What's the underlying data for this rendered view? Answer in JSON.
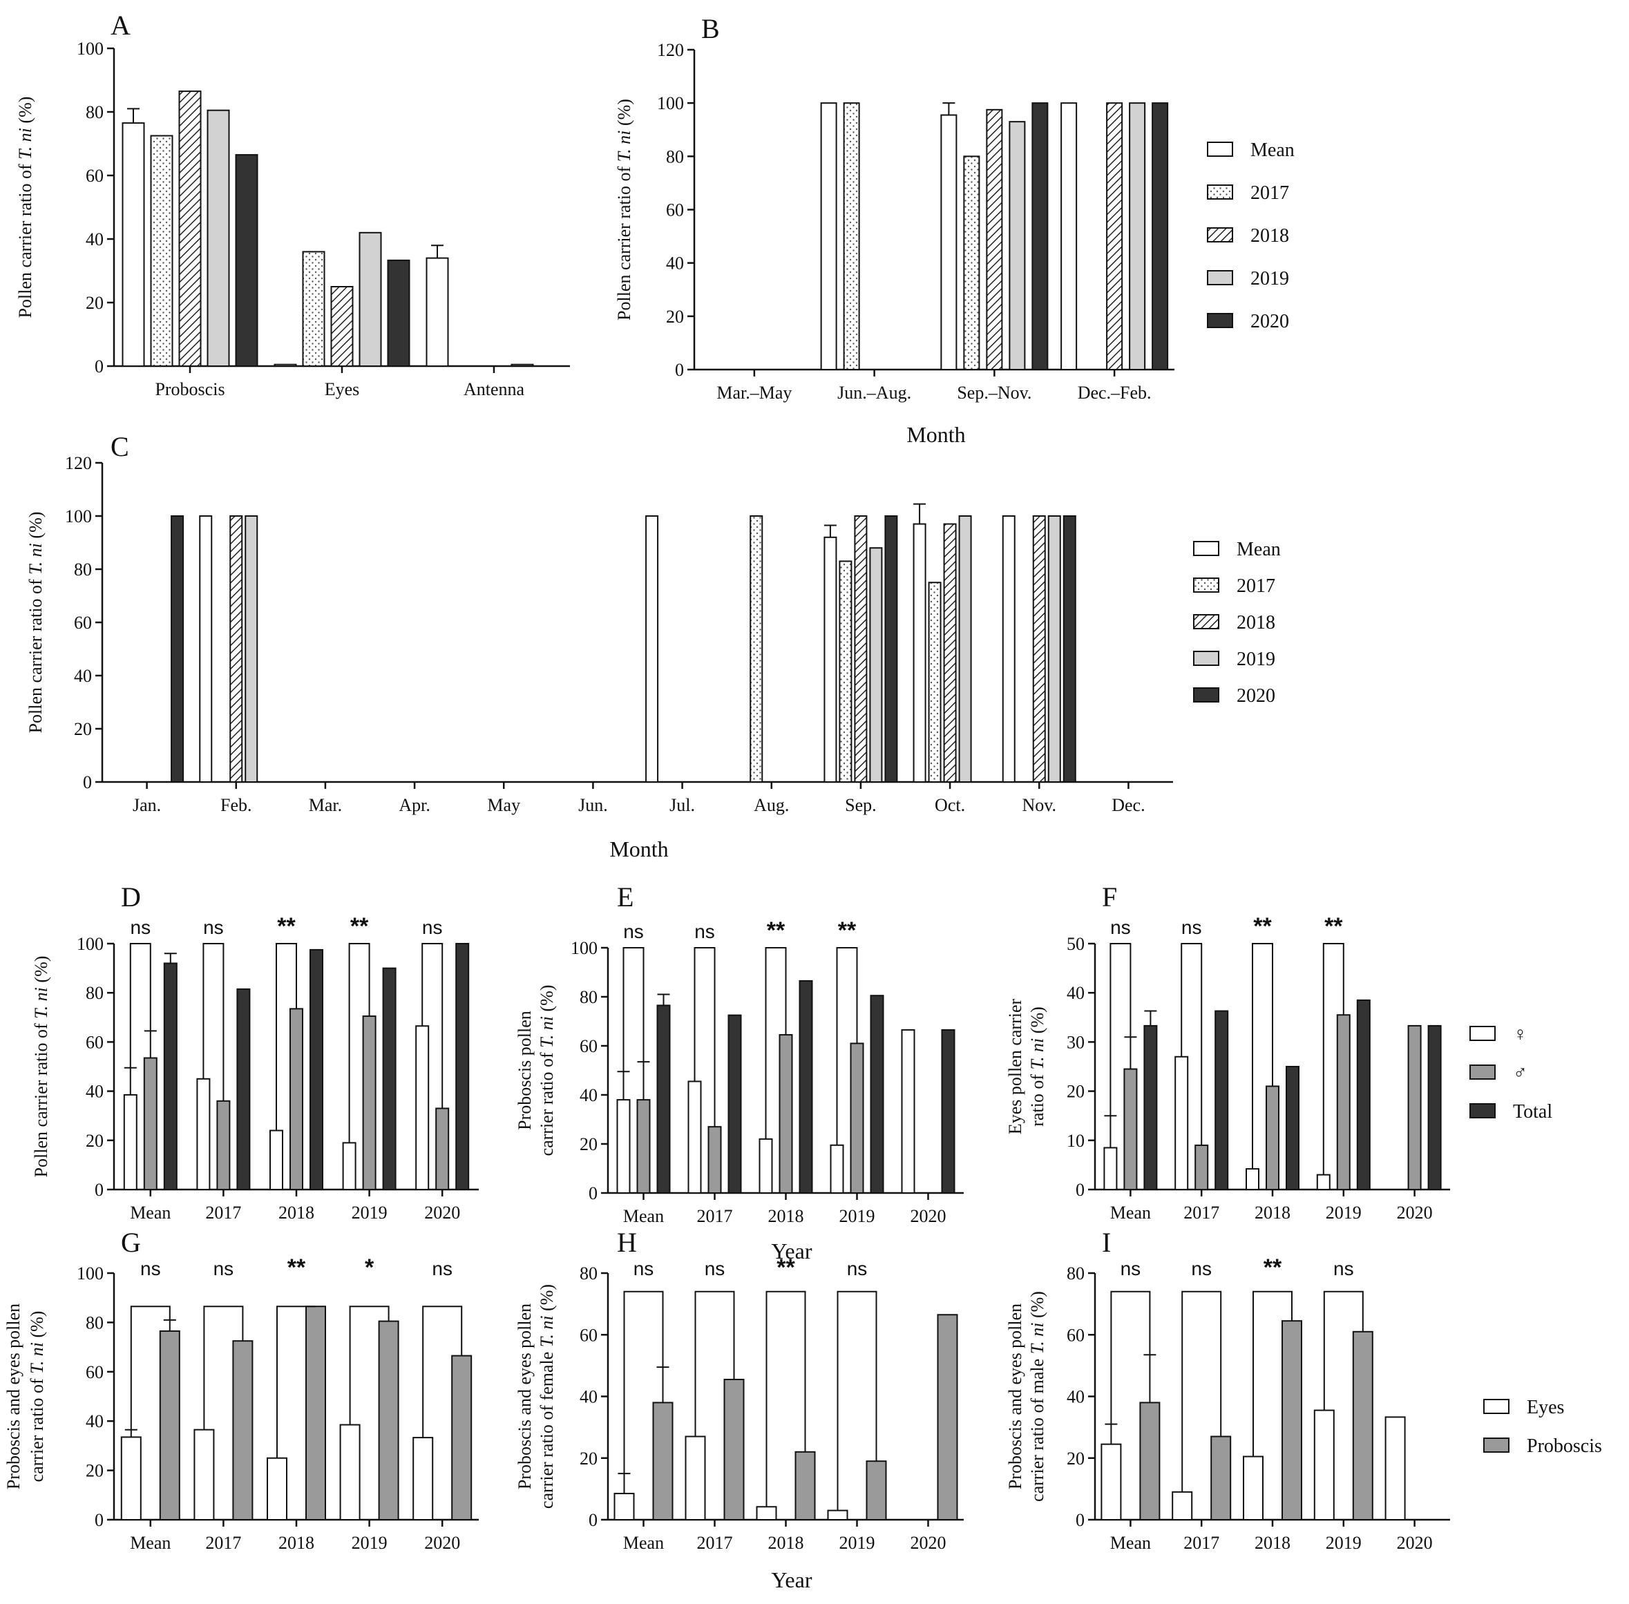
{
  "colors": {
    "mean": "#ffffff",
    "y2017": "#ffffff",
    "y2018": "#ffffff",
    "y2019": "#d2d2d2",
    "y2020": "#333333",
    "male": "#9a9a9a",
    "total": "#333333",
    "eyes": "#ffffff",
    "proboscis": "#9a9a9a"
  },
  "legends": {
    "years": [
      {
        "name": "Mean",
        "fill": "mean"
      },
      {
        "name": "2017",
        "fill": "dots"
      },
      {
        "name": "2018",
        "fill": "hatch"
      },
      {
        "name": "2019",
        "fill": "y2019"
      },
      {
        "name": "2020",
        "fill": "y2020"
      }
    ],
    "sex": [
      {
        "name": "♀",
        "fill": "mean"
      },
      {
        "name": "♂",
        "fill": "male"
      },
      {
        "name": "Total",
        "fill": "total"
      }
    ],
    "organ": [
      {
        "name": "Eyes",
        "fill": "eyes"
      },
      {
        "name": "Proboscis",
        "fill": "proboscis"
      }
    ]
  },
  "chart_data": [
    {
      "panel": "A",
      "type": "bar",
      "ylabel_parts": [
        "Pollen carrier ratio of ",
        "T. ni",
        " (%)"
      ],
      "xlabel": "",
      "ylim": [
        0,
        100
      ],
      "yticks": [
        0,
        20,
        40,
        60,
        80,
        100
      ],
      "categories": [
        "Proboscis",
        "Eyes",
        "Antenna"
      ],
      "series": [
        {
          "name": "Mean",
          "fill": "mean",
          "values": [
            76.5,
            0.5,
            34
          ],
          "errors": [
            4.5,
            0,
            4
          ]
        },
        {
          "name": "2017",
          "fill": "dots",
          "values": [
            72.5,
            36,
            0
          ]
        },
        {
          "name": "2018",
          "fill": "hatch",
          "values": [
            86.5,
            25,
            0
          ]
        },
        {
          "name": "2019",
          "fill": "y2019",
          "values": [
            80.5,
            42,
            0.5
          ]
        },
        {
          "name": "2020",
          "fill": "y2020",
          "values": [
            66.5,
            33.3,
            0
          ]
        }
      ]
    },
    {
      "panel": "B",
      "type": "bar",
      "ylabel_parts": [
        "Pollen carrier ratio of ",
        "T. ni",
        " (%)"
      ],
      "xlabel": "Month",
      "ylim": [
        0,
        120
      ],
      "yticks": [
        0,
        20,
        40,
        60,
        80,
        100,
        120
      ],
      "categories": [
        "Mar.–May",
        "Jun.–Aug.",
        "Sep.–Nov.",
        "Dec.–Feb."
      ],
      "series": [
        {
          "name": "Mean",
          "fill": "mean",
          "values": [
            0,
            100,
            95.5,
            100
          ],
          "errors": [
            0,
            0,
            4.5,
            0
          ]
        },
        {
          "name": "2017",
          "fill": "dots",
          "values": [
            0,
            100,
            80,
            0
          ]
        },
        {
          "name": "2018",
          "fill": "hatch",
          "values": [
            0,
            0,
            97.5,
            100
          ]
        },
        {
          "name": "2019",
          "fill": "y2019",
          "values": [
            0,
            0,
            93,
            100
          ]
        },
        {
          "name": "2020",
          "fill": "y2020",
          "values": [
            0,
            0,
            100,
            100
          ]
        }
      ]
    },
    {
      "panel": "C",
      "type": "bar",
      "ylabel_parts": [
        "Pollen carrier ratio of ",
        "T. ni",
        " (%)"
      ],
      "xlabel": "Month",
      "ylim": [
        0,
        120
      ],
      "yticks": [
        0,
        20,
        40,
        60,
        80,
        100,
        120
      ],
      "categories": [
        "Jan.",
        "Feb.",
        "Mar.",
        "Apr.",
        "May",
        "Jun.",
        "Jul.",
        "Aug.",
        "Sep.",
        "Oct.",
        "Nov.",
        "Dec."
      ],
      "series": [
        {
          "name": "Mean",
          "fill": "mean",
          "values": [
            0,
            100,
            0,
            0,
            0,
            0,
            100,
            0,
            92,
            97,
            100,
            0
          ],
          "errors": [
            0,
            0,
            0,
            0,
            0,
            0,
            0,
            0,
            4.5,
            7.5,
            0,
            0
          ]
        },
        {
          "name": "2017",
          "fill": "dots",
          "values": [
            0,
            0,
            0,
            0,
            0,
            0,
            0,
            100,
            83,
            75,
            0,
            0
          ]
        },
        {
          "name": "2018",
          "fill": "hatch",
          "values": [
            0,
            100,
            0,
            0,
            0,
            0,
            0,
            0,
            100,
            97,
            100,
            0
          ]
        },
        {
          "name": "2019",
          "fill": "y2019",
          "values": [
            0,
            100,
            0,
            0,
            0,
            0,
            0,
            0,
            88,
            100,
            100,
            0
          ]
        },
        {
          "name": "2020",
          "fill": "y2020",
          "values": [
            100,
            0,
            0,
            0,
            0,
            0,
            0,
            0,
            100,
            0,
            100,
            0
          ]
        }
      ]
    },
    {
      "panel": "D",
      "type": "bar",
      "ylabel_parts": [
        "Pollen carrier ratio of ",
        "T. ni",
        " (%)"
      ],
      "xlabel": "",
      "ylim": [
        0,
        100
      ],
      "yticks": [
        0,
        20,
        40,
        60,
        80,
        100
      ],
      "categories": [
        "Mean",
        "2017",
        "2018",
        "2019",
        "2020"
      ],
      "series": [
        {
          "name": "♀",
          "fill": "mean",
          "values": [
            38.5,
            45,
            24,
            19,
            66.5
          ],
          "errors": [
            11,
            0,
            0,
            0,
            0
          ]
        },
        {
          "name": "♂",
          "fill": "male",
          "values": [
            53.5,
            36,
            73.5,
            70.5,
            33
          ],
          "errors": [
            11,
            0,
            0,
            0,
            0
          ]
        },
        {
          "name": "Total",
          "fill": "total",
          "values": [
            92,
            81.5,
            97.5,
            90,
            100
          ],
          "errors": [
            4,
            0,
            0,
            0,
            0
          ]
        }
      ],
      "significance": [
        "ns",
        "ns",
        "**",
        "**",
        "ns"
      ],
      "bracket_at": 100
    },
    {
      "panel": "E",
      "type": "bar",
      "ylabel_lines": [
        [
          "Proboscis pollen"
        ],
        [
          "carrier ratio of ",
          "T. ni",
          " (%)"
        ]
      ],
      "xlabel": "Year",
      "ylim": [
        0,
        100
      ],
      "yticks": [
        0,
        20,
        40,
        60,
        80,
        100
      ],
      "categories": [
        "Mean",
        "2017",
        "2018",
        "2019",
        "2020"
      ],
      "series": [
        {
          "name": "♀",
          "fill": "mean",
          "values": [
            38,
            45.5,
            22,
            19.5,
            66.5
          ],
          "errors": [
            11.5,
            0,
            0,
            0,
            0
          ]
        },
        {
          "name": "♂",
          "fill": "male",
          "values": [
            38,
            27,
            64.5,
            61,
            0
          ],
          "errors": [
            15.5,
            0,
            0,
            0,
            0
          ]
        },
        {
          "name": "Total",
          "fill": "total",
          "values": [
            76.5,
            72.5,
            86.5,
            80.5,
            66.5
          ],
          "errors": [
            4.5,
            0,
            0,
            0,
            0
          ]
        }
      ],
      "significance": [
        "ns",
        "ns",
        "**",
        "**",
        ""
      ],
      "bracket_at": 100
    },
    {
      "panel": "F",
      "type": "bar",
      "ylabel_lines": [
        [
          "Eyes pollen carrier"
        ],
        [
          "ratio of ",
          "T. ni",
          " (%)"
        ]
      ],
      "xlabel": "",
      "ylim": [
        0,
        50
      ],
      "yticks": [
        0,
        10,
        20,
        30,
        40,
        50
      ],
      "categories": [
        "Mean",
        "2017",
        "2018",
        "2019",
        "2020"
      ],
      "series": [
        {
          "name": "♀",
          "fill": "mean",
          "values": [
            8.5,
            27,
            4.2,
            3,
            0
          ],
          "errors": [
            6.5,
            0,
            0,
            0,
            0
          ]
        },
        {
          "name": "♂",
          "fill": "male",
          "values": [
            24.5,
            9,
            21,
            35.5,
            33.3
          ],
          "errors": [
            6.5,
            0,
            0,
            0,
            0
          ]
        },
        {
          "name": "Total",
          "fill": "total",
          "values": [
            33.3,
            36.3,
            25,
            38.5,
            33.3
          ],
          "errors": [
            3,
            0,
            0,
            0,
            0
          ]
        }
      ],
      "significance": [
        "ns",
        "ns",
        "**",
        "**",
        ""
      ],
      "bracket_at": 50
    },
    {
      "panel": "G",
      "type": "bar",
      "ylabel_lines": [
        [
          "Proboscis and eyes pollen"
        ],
        [
          "carrier ratio of ",
          "T. ni",
          " (%)"
        ]
      ],
      "xlabel": "",
      "ylim": [
        0,
        100
      ],
      "yticks": [
        0,
        20,
        40,
        60,
        80,
        100
      ],
      "categories": [
        "Mean",
        "2017",
        "2018",
        "2019",
        "2020"
      ],
      "series": [
        {
          "name": "Eyes",
          "fill": "eyes",
          "values": [
            33.5,
            36.5,
            25,
            38.5,
            33.3
          ],
          "errors": [
            3,
            0,
            0,
            0,
            0
          ]
        },
        {
          "name": "Proboscis",
          "fill": "proboscis",
          "values": [
            76.5,
            72.5,
            86.5,
            80.5,
            66.5
          ],
          "errors": [
            4.5,
            0,
            0,
            0,
            0
          ]
        }
      ],
      "significance": [
        "ns",
        "ns",
        "**",
        "*",
        "ns"
      ],
      "bracket_at": 86.5
    },
    {
      "panel": "H",
      "type": "bar",
      "ylabel_lines": [
        [
          "Proboscis and eyes pollen"
        ],
        [
          "carrier ratio of female ",
          "T. ni",
          " (%)"
        ]
      ],
      "xlabel": "Year",
      "ylim": [
        0,
        80
      ],
      "yticks": [
        0,
        20,
        40,
        60,
        80
      ],
      "categories": [
        "Mean",
        "2017",
        "2018",
        "2019",
        "2020"
      ],
      "series": [
        {
          "name": "Eyes",
          "fill": "eyes",
          "values": [
            8.5,
            27,
            4.2,
            3,
            0
          ],
          "errors": [
            6.5,
            0,
            0,
            0,
            0
          ]
        },
        {
          "name": "Proboscis",
          "fill": "proboscis",
          "values": [
            38,
            45.5,
            22,
            19,
            66.5
          ],
          "errors": [
            11.5,
            0,
            0,
            0,
            0
          ]
        }
      ],
      "significance": [
        "ns",
        "ns",
        "**",
        "ns",
        ""
      ],
      "bracket_at": 74
    },
    {
      "panel": "I",
      "type": "bar",
      "ylabel_lines": [
        [
          "Proboscis and eyes pollen"
        ],
        [
          "carrier ratio of male ",
          "T. ni",
          " (%)"
        ]
      ],
      "xlabel": "",
      "ylim": [
        0,
        80
      ],
      "yticks": [
        0,
        20,
        40,
        60,
        80
      ],
      "categories": [
        "Mean",
        "2017",
        "2018",
        "2019",
        "2020"
      ],
      "series": [
        {
          "name": "Eyes",
          "fill": "eyes",
          "values": [
            24.5,
            9,
            20.5,
            35.5,
            33.3
          ],
          "errors": [
            6.5,
            0,
            0,
            0,
            0
          ]
        },
        {
          "name": "Proboscis",
          "fill": "proboscis",
          "values": [
            38,
            27,
            64.5,
            61,
            0
          ],
          "errors": [
            15.5,
            0,
            0,
            0,
            0
          ]
        }
      ],
      "significance": [
        "ns",
        "ns",
        "**",
        "ns",
        ""
      ],
      "bracket_at": 74
    }
  ]
}
